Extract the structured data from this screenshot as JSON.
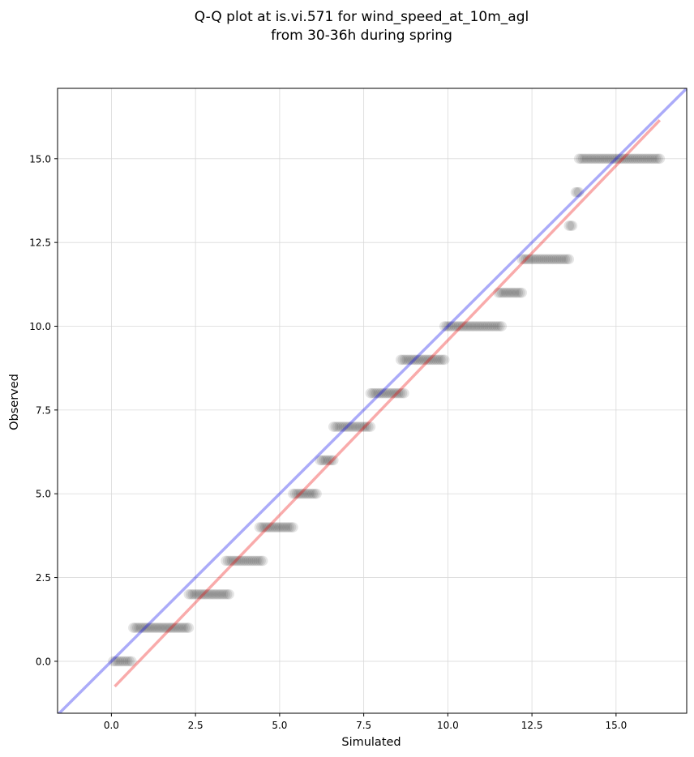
{
  "chart_data": {
    "type": "scatter",
    "title": [
      "Q-Q plot at is.vi.571 for wind_speed_at_10m_agl",
      "from 30-36h during spring"
    ],
    "xlabel": "Simulated",
    "ylabel": "Observed",
    "xlim": [
      -1.6,
      17.1
    ],
    "ylim": [
      -1.55,
      17.1
    ],
    "xticks": [
      0.0,
      2.5,
      5.0,
      7.5,
      10.0,
      12.5,
      15.0
    ],
    "yticks": [
      0.0,
      2.5,
      5.0,
      7.5,
      10.0,
      12.5,
      15.0
    ],
    "xtick_labels": [
      "0.0",
      "2.5",
      "5.0",
      "7.5",
      "10.0",
      "12.5",
      "15.0"
    ],
    "ytick_labels": [
      "0.0",
      "2.5",
      "5.0",
      "7.5",
      "10.0",
      "12.5",
      "15.0"
    ],
    "grid": true,
    "point_color": "#000000",
    "identity_line": {
      "x": [
        -1.6,
        17.1
      ],
      "y": [
        -1.6,
        17.1
      ],
      "color": "#0000ee"
    },
    "fit_line": {
      "x": [
        0.1,
        16.3
      ],
      "y": [
        -0.75,
        16.15
      ],
      "color": "#ee0000"
    },
    "point_groups": [
      {
        "observed": 0,
        "simulated_range": [
          0.05,
          0.6
        ]
      },
      {
        "observed": 1,
        "simulated_range": [
          0.65,
          2.3
        ]
      },
      {
        "observed": 2,
        "simulated_range": [
          2.3,
          3.5
        ]
      },
      {
        "observed": 3,
        "simulated_range": [
          3.4,
          4.5
        ]
      },
      {
        "observed": 4,
        "simulated_range": [
          4.4,
          5.4
        ]
      },
      {
        "observed": 5,
        "simulated_range": [
          5.4,
          6.1
        ]
      },
      {
        "observed": 6,
        "simulated_range": [
          6.2,
          6.6
        ]
      },
      {
        "observed": 7,
        "simulated_range": [
          6.6,
          7.7
        ]
      },
      {
        "observed": 8,
        "simulated_range": [
          7.7,
          8.7
        ]
      },
      {
        "observed": 9,
        "simulated_range": [
          8.6,
          9.9
        ]
      },
      {
        "observed": 10,
        "simulated_range": [
          9.9,
          11.6
        ]
      },
      {
        "observed": 11,
        "simulated_range": [
          11.5,
          12.2
        ]
      },
      {
        "observed": 12,
        "simulated_range": [
          12.2,
          13.6
        ]
      },
      {
        "observed": 13,
        "simulated_range": [
          13.6,
          13.7
        ]
      },
      {
        "observed": 14,
        "simulated_range": [
          13.8,
          13.9
        ]
      },
      {
        "observed": 15,
        "simulated_range": [
          13.9,
          16.3
        ]
      }
    ]
  }
}
